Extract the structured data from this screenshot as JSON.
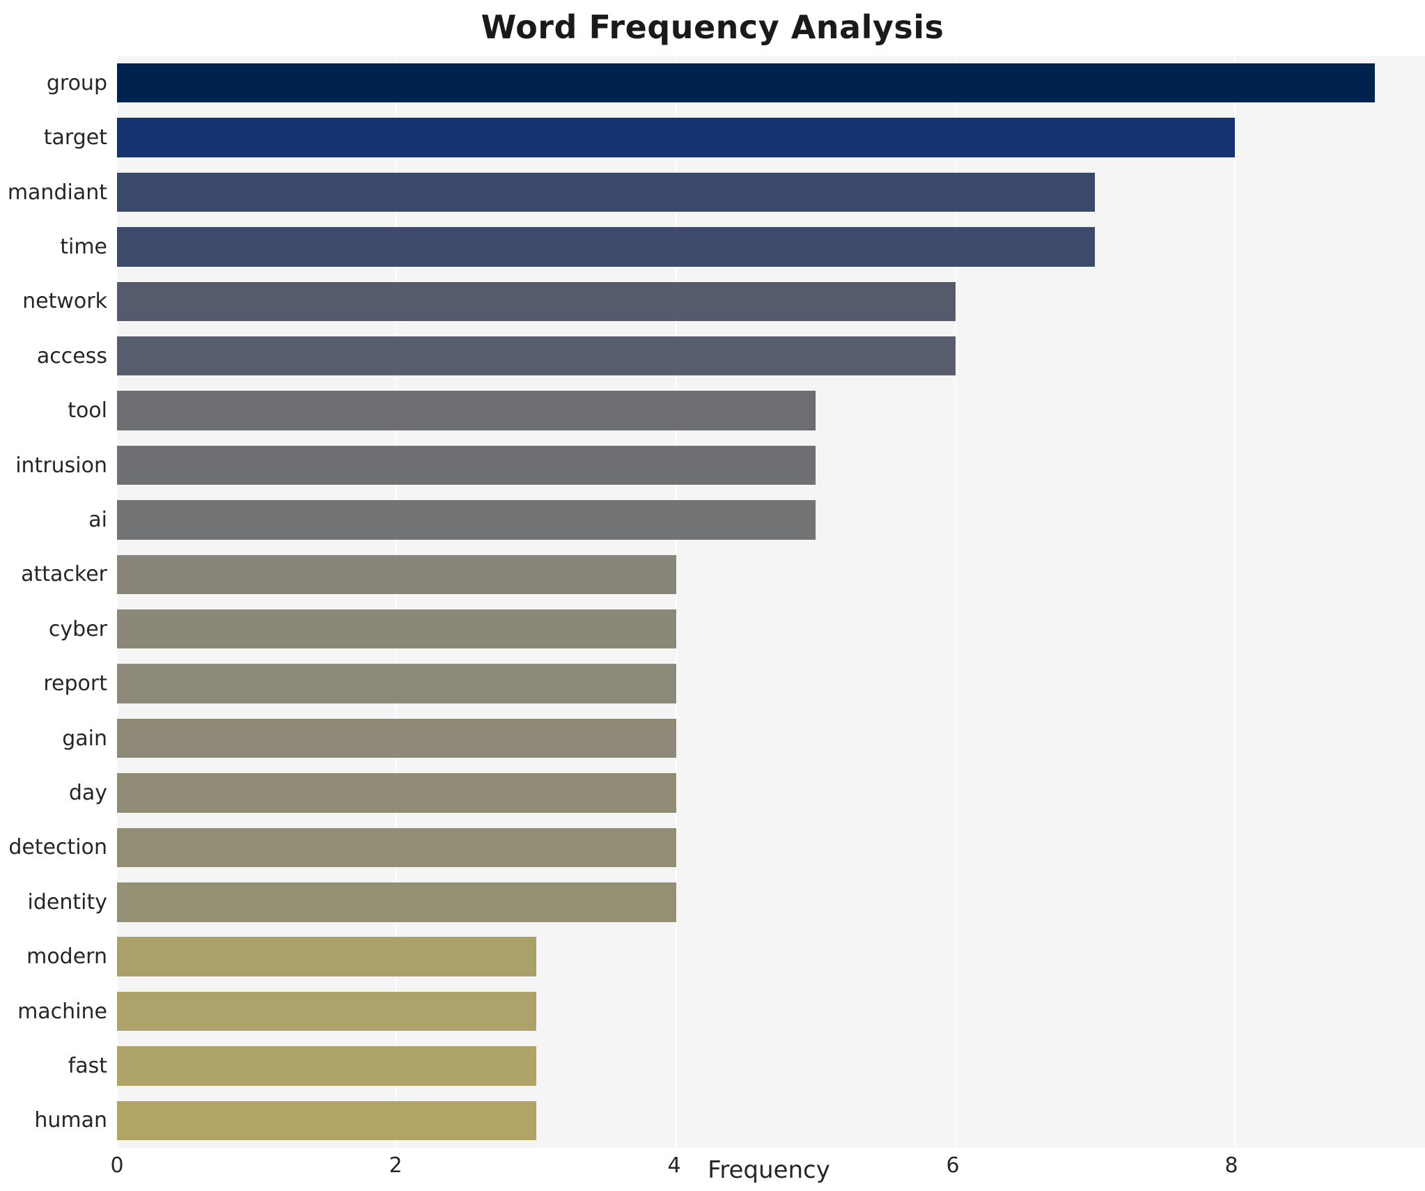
{
  "chart_data": {
    "type": "bar",
    "orientation": "horizontal",
    "title": "Word Frequency Analysis",
    "xlabel": "Frequency",
    "ylabel": "",
    "categories": [
      "group",
      "target",
      "mandiant",
      "time",
      "network",
      "access",
      "tool",
      "intrusion",
      "ai",
      "attacker",
      "cyber",
      "report",
      "gain",
      "day",
      "detection",
      "identity",
      "modern",
      "machine",
      "fast",
      "human"
    ],
    "values": [
      9,
      8,
      7,
      7,
      6,
      6,
      5,
      5,
      5,
      4,
      4,
      4,
      4,
      4,
      4,
      4,
      3,
      3,
      3,
      3
    ],
    "colors": [
      "#00224e",
      "#15336e",
      "#39486b",
      "#3d4a6b",
      "#555b6c",
      "#575d6d",
      "#6c6e72",
      "#6e7073",
      "#727476",
      "#89857a",
      "#8b8779",
      "#8d8978",
      "#8f8a77",
      "#918c76",
      "#938d74",
      "#958f73",
      "#aaa06a",
      "#ada26a",
      "#afa468",
      "#b1a566"
    ],
    "xticks": [
      0,
      2,
      4,
      6,
      8
    ],
    "xtick_labels": [
      "0",
      "2",
      "4",
      "6",
      "8"
    ],
    "xlim": [
      0,
      9.36
    ],
    "grid": "vertical-white",
    "plot_background": "#f5f5f6",
    "figure_background": "#ffffff",
    "legend": "none"
  }
}
